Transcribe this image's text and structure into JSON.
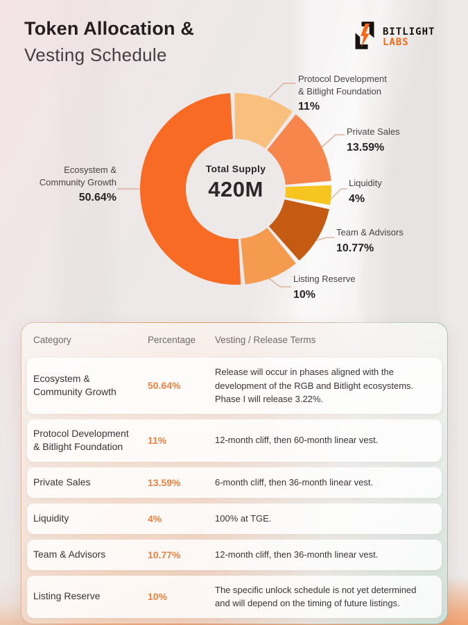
{
  "header": {
    "title_line1": "Token Allocation &",
    "title_line2": "Vesting Schedule",
    "brand": {
      "name": "BITLIGHT",
      "sub": "LABS"
    }
  },
  "chart_data": {
    "type": "pie",
    "subtype": "donut",
    "title": "Token Allocation",
    "center_label": "Total Supply",
    "center_value": "420M",
    "start_angle_deg": -2,
    "direction": "clockwise",
    "legend_position": "around",
    "slices": [
      {
        "name": "Protocol Development & Bitlight Foundation",
        "label_line1": "Protocol Development",
        "label_line2": "& Bitlight Foundation",
        "value": 11,
        "pct": "11%",
        "color": "#F9BF7D"
      },
      {
        "name": "Private Sales",
        "label_line1": "Private Sales",
        "label_line2": "",
        "value": 13.59,
        "pct": "13.59%",
        "color": "#F6864B"
      },
      {
        "name": "Liquidity",
        "label_line1": "Liquidity",
        "label_line2": "",
        "value": 4,
        "pct": "4%",
        "color": "#F6C520"
      },
      {
        "name": "Team & Advisors",
        "label_line1": "Team & Advisors",
        "label_line2": "",
        "value": 10.77,
        "pct": "10.77%",
        "color": "#C55A12"
      },
      {
        "name": "Listing Reserve",
        "label_line1": "Listing Reserve",
        "label_line2": "",
        "value": 10,
        "pct": "10%",
        "color": "#F59B4F"
      },
      {
        "name": "Ecosystem & Community Growth",
        "label_line1": "Ecosystem &",
        "label_line2": "Community Growth",
        "value": 50.64,
        "pct": "50.64%",
        "color": "#F76B24"
      }
    ]
  },
  "colors": {
    "accent_orange": "#F2691C",
    "percentage_text": "#EB8243",
    "leader_line": "#D8A488",
    "card_border_start": "#E89A66",
    "card_border_end": "#8CC0AE"
  },
  "table": {
    "headers": [
      "Category",
      "Percentage",
      "Vesting / Release Terms"
    ],
    "rows": [
      {
        "category_line1": "Ecosystem &",
        "category_line2": "Community Growth",
        "percentage": "50.64%",
        "terms": "Release will occur in phases aligned with the development of the RGB and Bitlight ecosystems. Phase I will release 3.22%."
      },
      {
        "category_line1": "Protocol Development",
        "category_line2": "& Bitlight Foundation",
        "percentage": "11%",
        "terms": "12-month cliff, then 60-month linear vest."
      },
      {
        "category_line1": "Private Sales",
        "category_line2": "",
        "percentage": "13.59%",
        "terms": "6-month cliff, then 36-month linear vest."
      },
      {
        "category_line1": "Liquidity",
        "category_line2": "",
        "percentage": "4%",
        "terms": "100% at TGE."
      },
      {
        "category_line1": "Team & Advisors",
        "category_line2": "",
        "percentage": "10.77%",
        "terms": "12-month cliff, then 36-month linear vest."
      },
      {
        "category_line1": "Listing Reserve",
        "category_line2": "",
        "percentage": "10%",
        "terms": "The specific unlock schedule is not yet determined and will depend on the timing of future listings."
      }
    ]
  }
}
